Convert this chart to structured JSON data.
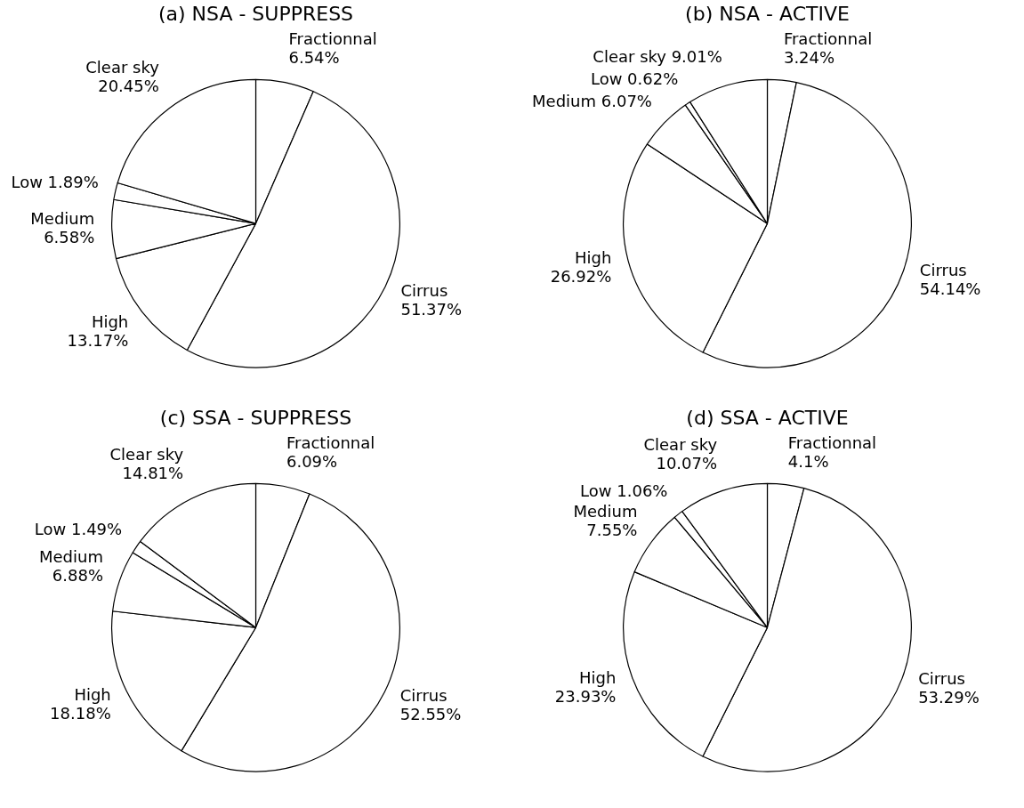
{
  "chart_data": [
    {
      "type": "pie",
      "title": "(a) NSA - SUPPRESS",
      "categories": [
        "Fractionnal",
        "Cirrus",
        "High",
        "Medium",
        "Low",
        "Clear sky"
      ],
      "values": [
        6.54,
        51.37,
        13.17,
        6.58,
        1.89,
        20.45
      ],
      "value_labels": [
        "6.54%",
        "51.37%",
        "13.17%",
        "6.58%",
        "1.89%",
        "20.45%"
      ],
      "colors": [
        "#ffffff",
        "#ffffff",
        "#ffffff",
        "#ffffff",
        "#ffffff",
        "#ffffff"
      ],
      "legend": false
    },
    {
      "type": "pie",
      "title": "(b) NSA - ACTIVE",
      "categories": [
        "Fractionnal",
        "Cirrus",
        "High",
        "Medium",
        "Low",
        "Clear sky"
      ],
      "values": [
        3.24,
        54.14,
        26.92,
        6.07,
        0.62,
        9.01
      ],
      "value_labels": [
        "3.24%",
        "54.14%",
        "26.92%",
        "6.07%",
        "0.62%",
        "9.01%"
      ],
      "colors": [
        "#ffffff",
        "#ffffff",
        "#ffffff",
        "#ffffff",
        "#ffffff",
        "#ffffff"
      ],
      "legend": false
    },
    {
      "type": "pie",
      "title": "(c) SSA - SUPPRESS",
      "categories": [
        "Fractionnal",
        "Cirrus",
        "High",
        "Medium",
        "Low",
        "Clear sky"
      ],
      "values": [
        6.09,
        52.55,
        18.18,
        6.88,
        1.49,
        14.81
      ],
      "value_labels": [
        "6.09%",
        "52.55%",
        "18.18%",
        "6.88%",
        "1.49%",
        "14.81%"
      ],
      "colors": [
        "#ffffff",
        "#ffffff",
        "#ffffff",
        "#ffffff",
        "#ffffff",
        "#ffffff"
      ],
      "legend": false
    },
    {
      "type": "pie",
      "title": "(d) SSA - ACTIVE",
      "categories": [
        "Fractionnal",
        "Cirrus",
        "High",
        "Medium",
        "Low",
        "Clear sky"
      ],
      "values": [
        4.1,
        53.29,
        23.93,
        7.55,
        1.06,
        10.07
      ],
      "value_labels": [
        "4.1%",
        "53.29%",
        "23.93%",
        "7.55%",
        "1.06%",
        "10.07%"
      ],
      "colors": [
        "#ffffff",
        "#ffffff",
        "#ffffff",
        "#ffffff",
        "#ffffff",
        "#ffffff"
      ],
      "legend": false
    }
  ]
}
